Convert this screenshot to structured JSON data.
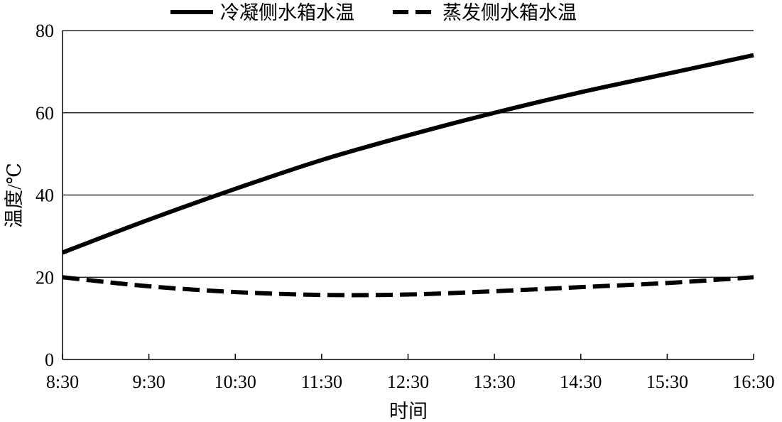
{
  "chart_data": {
    "type": "line",
    "xlabel": "时间",
    "ylabel": "温度/℃",
    "x_categories": [
      "8:30",
      "9:30",
      "10:30",
      "11:30",
      "12:30",
      "13:30",
      "14:30",
      "15:30",
      "16:30"
    ],
    "y_ticks": [
      "0",
      "20",
      "40",
      "60",
      "80"
    ],
    "ylim": [
      0,
      80
    ],
    "grid": "horizontal",
    "legend_position": "top",
    "series": [
      {
        "name": "冷凝侧水箱水温",
        "style": "solid",
        "color": "#000000",
        "values": [
          26.0,
          34.0,
          41.5,
          48.5,
          54.5,
          60.0,
          65.0,
          69.5,
          74.0
        ]
      },
      {
        "name": "蒸发侧水箱水温",
        "style": "dashed",
        "color": "#000000",
        "values": [
          20.0,
          17.8,
          16.4,
          15.7,
          15.8,
          16.6,
          17.6,
          18.6,
          20.0
        ]
      }
    ]
  }
}
